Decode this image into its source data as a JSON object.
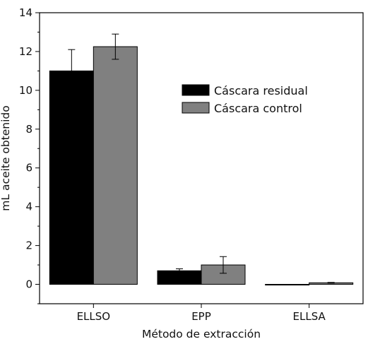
{
  "chart_data": {
    "type": "bar",
    "categories": [
      "ELLSO",
      "EPP",
      "ELLSA"
    ],
    "series": [
      {
        "name": "Cáscara residual",
        "color": "#000000",
        "values": [
          11.0,
          0.7,
          0.0
        ],
        "errors": [
          1.1,
          0.1,
          0.0
        ]
      },
      {
        "name": "Cáscara control",
        "color": "#808080",
        "values": [
          12.25,
          1.0,
          0.08
        ],
        "errors": [
          0.65,
          0.43,
          0.02
        ]
      }
    ],
    "xlabel": "Método de extracción",
    "ylabel": "mL aceite obtenido",
    "ylim": [
      -1,
      14
    ],
    "yticks": [
      0,
      2,
      4,
      6,
      8,
      10,
      12,
      14
    ],
    "grid": false,
    "legend_position": "upper-right"
  }
}
